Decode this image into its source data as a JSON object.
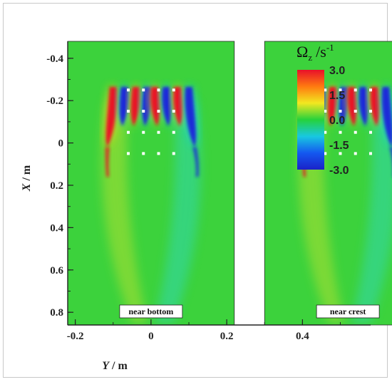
{
  "chart_data": {
    "type": "heatmap",
    "quantity": "vorticity",
    "colorbar": {
      "title_symbol": "Ω",
      "title_subscript": "z",
      "title_unit": "/s",
      "title_exponent": "-1",
      "ticks": [
        "3.0",
        "1.5",
        "0.0",
        "-1.5",
        "-3.0"
      ],
      "range": [
        -3.0,
        3.0
      ],
      "colors_high_to_low": [
        "#e8102a",
        "#ff7a10",
        "#f2e820",
        "#26d23c",
        "#18c8e0",
        "#1458f0",
        "#1a22c8"
      ]
    },
    "x_axis": {
      "label_var": "Y",
      "label_unit": " / m",
      "ticks": [
        "-0.2",
        "0",
        "0.2",
        "0.4"
      ],
      "range": [
        -0.22,
        0.58
      ]
    },
    "y_axis": {
      "label_var": "X",
      "label_unit": " / m",
      "ticks": [
        "-0.4",
        "-0.2",
        "0",
        "0.2",
        "0.4",
        "0.6",
        "0.8"
      ],
      "range": [
        -0.48,
        0.86
      ],
      "inverted": true
    },
    "panels": [
      {
        "label": "near bottom",
        "y_range": [
          -0.22,
          0.22
        ]
      },
      {
        "label": "near crest",
        "y_range": [
          -0.22,
          0.22
        ]
      }
    ],
    "vortex_columns": [
      {
        "y": -0.1,
        "value": 3.0
      },
      {
        "y": -0.07,
        "value": -3.0
      },
      {
        "y": -0.04,
        "value": 3.0
      },
      {
        "y": -0.01,
        "value": -3.0
      },
      {
        "y": 0.01,
        "value": 3.0
      },
      {
        "y": 0.04,
        "value": -3.0
      },
      {
        "y": 0.07,
        "value": 3.0
      },
      {
        "y": 0.1,
        "value": -3.0
      }
    ],
    "markers": [
      {
        "x": -0.25,
        "y": -0.06
      },
      {
        "x": -0.25,
        "y": -0.02
      },
      {
        "x": -0.25,
        "y": 0.02
      },
      {
        "x": -0.25,
        "y": 0.06
      },
      {
        "x": -0.15,
        "y": -0.06
      },
      {
        "x": -0.15,
        "y": -0.02
      },
      {
        "x": -0.15,
        "y": 0.02
      },
      {
        "x": -0.15,
        "y": 0.06
      },
      {
        "x": -0.05,
        "y": -0.06
      },
      {
        "x": -0.05,
        "y": -0.02
      },
      {
        "x": -0.05,
        "y": 0.02
      },
      {
        "x": -0.05,
        "y": 0.06
      },
      {
        "x": 0.05,
        "y": -0.06
      },
      {
        "x": 0.05,
        "y": -0.02
      },
      {
        "x": 0.05,
        "y": 0.02
      },
      {
        "x": 0.05,
        "y": 0.06
      }
    ]
  }
}
